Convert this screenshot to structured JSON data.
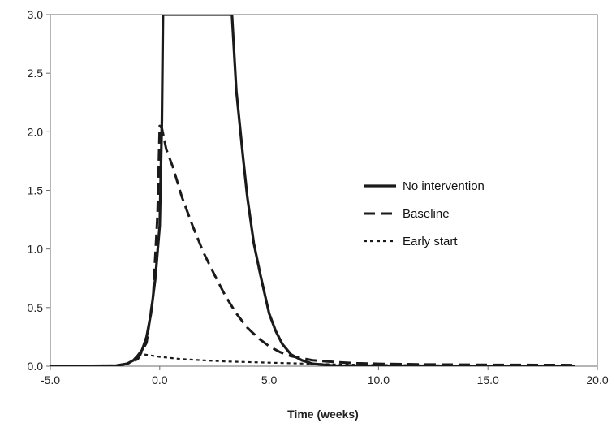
{
  "chart_data": {
    "type": "line",
    "title": "",
    "xlabel": "Time (weeks)",
    "ylabel": "",
    "xlim": [
      -5,
      20
    ],
    "ylim": [
      0,
      3
    ],
    "xticks": [
      -5,
      0,
      5,
      10,
      15,
      20
    ],
    "xtick_labels": [
      "-5.0",
      "0.0",
      "5.0",
      "10.0",
      "15.0",
      "20.0"
    ],
    "yticks": [
      0,
      0.5,
      1,
      1.5,
      2,
      2.5,
      3
    ],
    "ytick_labels": [
      "0.0",
      "0.5",
      "1.0",
      "1.5",
      "2.0",
      "2.5",
      "3.0"
    ],
    "grid": false,
    "legend_position": "right",
    "series": [
      {
        "name": "No intervention",
        "style": "solid",
        "x": [
          -5,
          -2,
          -1.5,
          -1.2,
          -1,
          -0.8,
          -0.6,
          -0.4,
          -0.2,
          0,
          0.1,
          0.15,
          3.3,
          3.5,
          3.8,
          4,
          4.3,
          4.6,
          5,
          5.3,
          5.6,
          6,
          6.5,
          7,
          8,
          19
        ],
        "values": [
          0,
          0.005,
          0.02,
          0.05,
          0.09,
          0.14,
          0.25,
          0.45,
          0.75,
          1.2,
          2.1,
          3.0,
          3.0,
          2.35,
          1.8,
          1.45,
          1.05,
          0.78,
          0.45,
          0.3,
          0.19,
          0.1,
          0.05,
          0.02,
          0.005,
          0
        ],
        "color": "#1a1a1a"
      },
      {
        "name": "Baseline",
        "style": "dashed",
        "x": [
          -5,
          -2,
          -1.5,
          -1,
          -0.6,
          -0.3,
          -0.1,
          0,
          0.1,
          0.3,
          0.6,
          1,
          1.5,
          2,
          2.5,
          3,
          3.5,
          4,
          4.5,
          5,
          5.5,
          6,
          7,
          8,
          9,
          10,
          12,
          15,
          19
        ],
        "values": [
          0,
          0.005,
          0.02,
          0.06,
          0.2,
          0.6,
          1.3,
          2.05,
          2.03,
          1.85,
          1.7,
          1.45,
          1.2,
          0.97,
          0.78,
          0.6,
          0.45,
          0.33,
          0.24,
          0.17,
          0.12,
          0.085,
          0.05,
          0.035,
          0.025,
          0.02,
          0.015,
          0.012,
          0.01
        ],
        "color": "#1a1a1a"
      },
      {
        "name": "Early start",
        "style": "dotted",
        "x": [
          -5,
          -2,
          -1.5,
          -1.2,
          -1,
          -0.7,
          0,
          1,
          2,
          3,
          4,
          5,
          6,
          7,
          8,
          10,
          12,
          15,
          19
        ],
        "values": [
          0,
          0.005,
          0.02,
          0.05,
          0.09,
          0.1,
          0.08,
          0.06,
          0.05,
          0.04,
          0.035,
          0.03,
          0.025,
          0.02,
          0.015,
          0.01,
          0.008,
          0.005,
          0.005
        ],
        "color": "#1a1a1a"
      }
    ]
  }
}
